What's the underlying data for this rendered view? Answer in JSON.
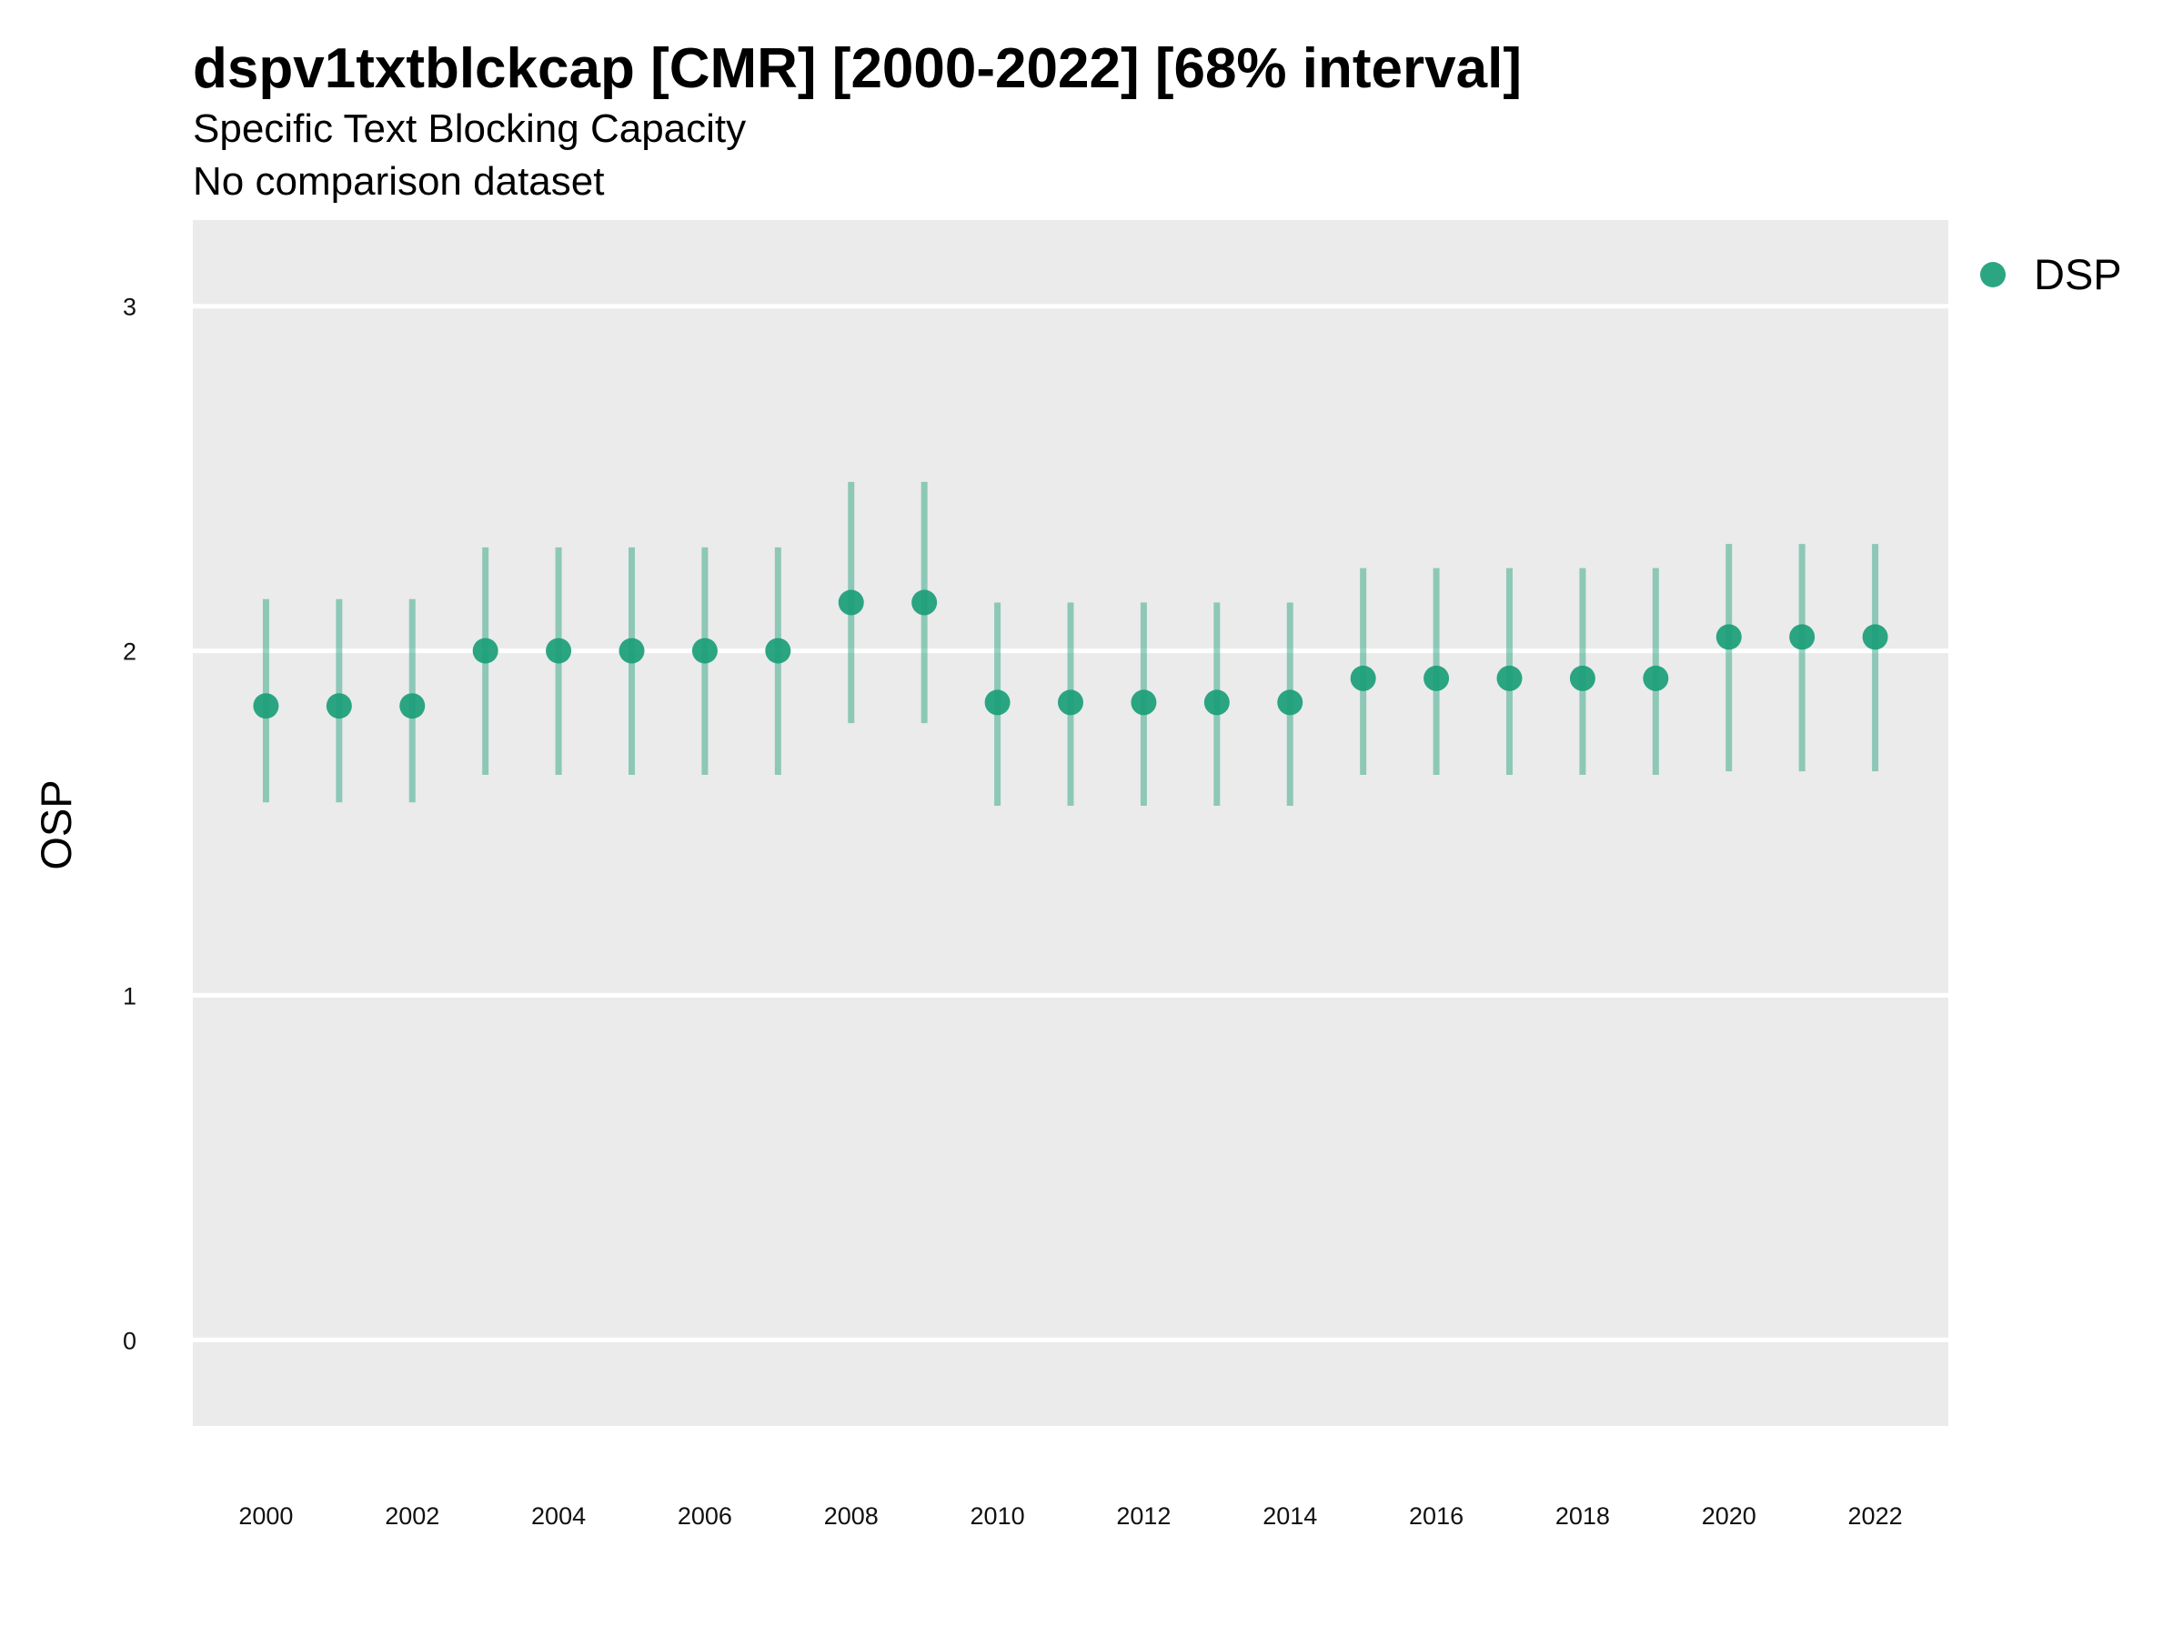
{
  "chart_data": {
    "type": "scatter",
    "title": "dspv1txtblckcap [CMR] [2000-2022] [68% interval]",
    "subtitle": "Specific Text Blocking Capacity",
    "caption_line": "No comparison dataset",
    "xlabel": "",
    "ylabel": "OSP",
    "xlim": [
      1999.0,
      2023.0
    ],
    "ylim": [
      -0.25,
      3.25
    ],
    "x_ticks": [
      "2000",
      "2002",
      "2004",
      "2006",
      "2008",
      "2010",
      "2012",
      "2014",
      "2016",
      "2018",
      "2020",
      "2022"
    ],
    "y_ticks": [
      "0",
      "1",
      "2",
      "3"
    ],
    "grid": true,
    "legend_position": "right",
    "series": [
      {
        "name": "DSP",
        "color": "#1a9e77",
        "x": [
          2000,
          2001,
          2002,
          2003,
          2004,
          2005,
          2006,
          2007,
          2008,
          2009,
          2010,
          2011,
          2012,
          2013,
          2014,
          2015,
          2016,
          2017,
          2018,
          2019,
          2020,
          2021,
          2022
        ],
        "y": [
          1.84,
          1.84,
          1.84,
          2.0,
          2.0,
          2.0,
          2.0,
          2.0,
          2.14,
          2.14,
          1.85,
          1.85,
          1.85,
          1.85,
          1.85,
          1.92,
          1.92,
          1.92,
          1.92,
          1.92,
          2.04,
          2.04,
          2.04
        ],
        "lower": [
          1.56,
          1.56,
          1.56,
          1.64,
          1.64,
          1.64,
          1.64,
          1.64,
          1.79,
          1.79,
          1.55,
          1.55,
          1.55,
          1.55,
          1.55,
          1.64,
          1.64,
          1.64,
          1.64,
          1.64,
          1.65,
          1.65,
          1.65
        ],
        "upper": [
          2.15,
          2.15,
          2.15,
          2.3,
          2.3,
          2.3,
          2.3,
          2.3,
          2.49,
          2.49,
          2.14,
          2.14,
          2.14,
          2.14,
          2.14,
          2.24,
          2.24,
          2.24,
          2.24,
          2.24,
          2.31,
          2.31,
          2.31
        ]
      }
    ]
  }
}
